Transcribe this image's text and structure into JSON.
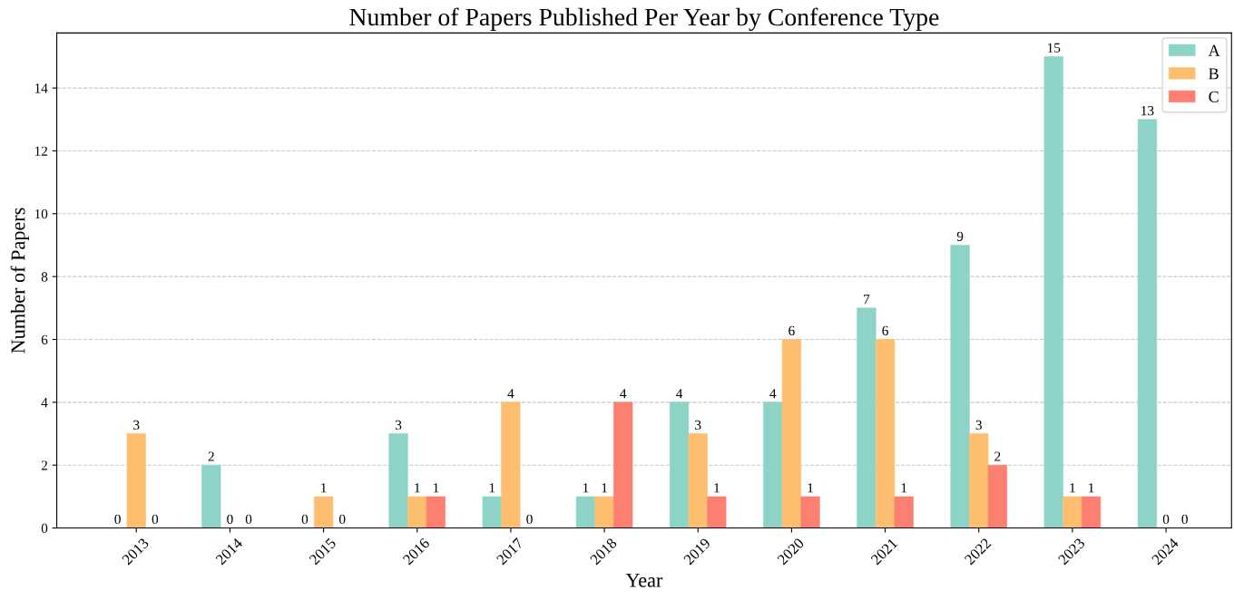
{
  "chart_data": {
    "type": "bar",
    "title": "Number of Papers Published Per Year by Conference Type",
    "xlabel": "Year",
    "ylabel": "Number of Papers",
    "categories": [
      "2013",
      "2014",
      "2015",
      "2016",
      "2017",
      "2018",
      "2019",
      "2020",
      "2021",
      "2022",
      "2023",
      "2024"
    ],
    "series": [
      {
        "name": "A",
        "color": "#8dd3c7",
        "values": [
          0,
          2,
          0,
          3,
          1,
          1,
          4,
          4,
          7,
          9,
          15,
          13
        ]
      },
      {
        "name": "B",
        "color": "#fdbf6f",
        "values": [
          3,
          0,
          1,
          1,
          4,
          1,
          3,
          6,
          6,
          3,
          1,
          0
        ]
      },
      {
        "name": "C",
        "color": "#fb8072",
        "values": [
          0,
          0,
          0,
          1,
          0,
          4,
          1,
          1,
          1,
          2,
          1,
          0
        ]
      }
    ],
    "ylim": [
      0,
      15.75
    ],
    "yticks": [
      0,
      2,
      4,
      6,
      8,
      10,
      12,
      14
    ],
    "grid": "y",
    "legend": "top right",
    "data_labels": true
  }
}
